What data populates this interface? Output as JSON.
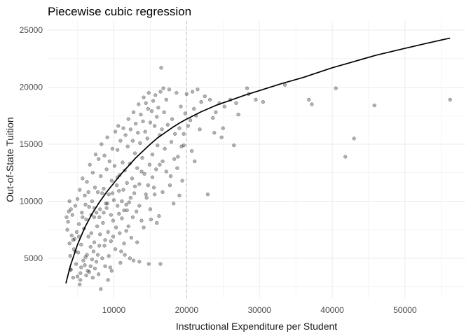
{
  "chart_data": {
    "type": "scatter",
    "title": "Piecewise cubic regression",
    "xlabel": "Instructional Expenditure per Student",
    "ylabel": "Out-of-State Tuition",
    "xlim": [
      900,
      58300
    ],
    "ylim": [
      1500,
      25800
    ],
    "x_ticks": [
      10000,
      20000,
      30000,
      40000,
      50000
    ],
    "x_tick_labels": [
      "10000",
      "20000",
      "30000",
      "40000",
      "50000"
    ],
    "y_ticks": [
      5000,
      10000,
      15000,
      20000,
      25000
    ],
    "y_tick_labels": [
      "5000",
      "10000",
      "15000",
      "20000",
      "25000"
    ],
    "grid": true,
    "knot_line": {
      "x": 20000,
      "style": "dashed"
    },
    "colors": {
      "points": "#000000",
      "points_alpha": 0.3,
      "fit_line": "#000000",
      "grid": "#ebebeb",
      "knot": "#bebebe"
    },
    "fit_curve": {
      "name": "",
      "x": [
        3400,
        4000,
        5000,
        6000,
        7000,
        8000,
        9000,
        10000,
        11000,
        12000,
        13000,
        14000,
        15000,
        16000,
        17000,
        18000,
        19000,
        20000,
        22000,
        24000,
        26000,
        28000,
        30000,
        33000,
        36000,
        40000,
        43000,
        46000,
        50000,
        53000,
        56200
      ],
      "y": [
        2800,
        4300,
        6200,
        7700,
        8900,
        9900,
        10800,
        11600,
        12400,
        13100,
        13800,
        14400,
        15000,
        15550,
        16000,
        16450,
        16850,
        17200,
        17850,
        18400,
        18850,
        19300,
        19700,
        20300,
        20850,
        21700,
        22250,
        22800,
        23400,
        23850,
        24300
      ]
    },
    "points": [
      [
        3600,
        7500
      ],
      [
        3700,
        8200
      ],
      [
        3800,
        9100
      ],
      [
        3900,
        6300
      ],
      [
        4000,
        5200
      ],
      [
        4100,
        4000
      ],
      [
        4200,
        7000
      ],
      [
        4300,
        8800
      ],
      [
        4400,
        3300
      ],
      [
        4500,
        5800
      ],
      [
        4600,
        6700
      ],
      [
        4700,
        9600
      ],
      [
        4800,
        4500
      ],
      [
        4900,
        7300
      ],
      [
        5000,
        10200
      ],
      [
        5100,
        5500
      ],
      [
        5200,
        8000
      ],
      [
        5300,
        11000
      ],
      [
        5400,
        3700
      ],
      [
        5500,
        6200
      ],
      [
        5600,
        9000
      ],
      [
        5700,
        12000
      ],
      [
        5800,
        4800
      ],
      [
        5900,
        7600
      ],
      [
        6000,
        10500
      ],
      [
        6100,
        5100
      ],
      [
        6200,
        8400
      ],
      [
        6300,
        11700
      ],
      [
        6400,
        3900
      ],
      [
        6500,
        6900
      ],
      [
        6600,
        9500
      ],
      [
        6700,
        13200
      ],
      [
        6800,
        4300
      ],
      [
        6900,
        7200
      ],
      [
        7000,
        10000
      ],
      [
        7100,
        12500
      ],
      [
        7200,
        5600
      ],
      [
        7300,
        8600
      ],
      [
        7400,
        11200
      ],
      [
        7500,
        14100
      ],
      [
        7600,
        4700
      ],
      [
        7700,
        7800
      ],
      [
        7800,
        10800
      ],
      [
        7900,
        13700
      ],
      [
        8000,
        6100
      ],
      [
        8100,
        9300
      ],
      [
        8200,
        12200
      ],
      [
        8300,
        15000
      ],
      [
        8400,
        5000
      ],
      [
        8500,
        8100
      ],
      [
        8600,
        11100
      ],
      [
        8700,
        14000
      ],
      [
        8800,
        6600
      ],
      [
        8900,
        9800
      ],
      [
        9000,
        12800
      ],
      [
        9100,
        15600
      ],
      [
        9200,
        7300
      ],
      [
        9300,
        10600
      ],
      [
        9400,
        13500
      ],
      [
        9500,
        4200
      ],
      [
        9600,
        8800
      ],
      [
        9700,
        11800
      ],
      [
        9800,
        14600
      ],
      [
        9900,
        6900
      ],
      [
        10000,
        10100
      ],
      [
        10100,
        13100
      ],
      [
        10200,
        16100
      ],
      [
        10300,
        7700
      ],
      [
        10400,
        11400
      ],
      [
        10500,
        14500
      ],
      [
        10600,
        16600
      ],
      [
        10700,
        8900
      ],
      [
        10800,
        12300
      ],
      [
        10900,
        15300
      ],
      [
        11000,
        5600
      ],
      [
        11100,
        10000
      ],
      [
        11200,
        13400
      ],
      [
        11300,
        16400
      ],
      [
        11400,
        9200
      ],
      [
        11500,
        12700
      ],
      [
        11600,
        15800
      ],
      [
        11700,
        7400
      ],
      [
        11800,
        11600
      ],
      [
        11900,
        14800
      ],
      [
        12000,
        17200
      ],
      [
        12100,
        9900
      ],
      [
        12200,
        13300
      ],
      [
        12300,
        16300
      ],
      [
        12400,
        6800
      ],
      [
        12500,
        12000
      ],
      [
        12600,
        15300
      ],
      [
        12700,
        17800
      ],
      [
        12800,
        10700
      ],
      [
        12900,
        14200
      ],
      [
        13000,
        16800
      ],
      [
        13100,
        9100
      ],
      [
        13200,
        12900
      ],
      [
        13300,
        16000
      ],
      [
        13400,
        18500
      ],
      [
        13500,
        11500
      ],
      [
        13600,
        15100
      ],
      [
        13700,
        17600
      ],
      [
        13800,
        8300
      ],
      [
        13900,
        13800
      ],
      [
        14000,
        17000
      ],
      [
        14100,
        19100
      ],
      [
        14200,
        12400
      ],
      [
        14300,
        16100
      ],
      [
        14400,
        18600
      ],
      [
        14500,
        10300
      ],
      [
        14600,
        15500
      ],
      [
        14700,
        18100
      ],
      [
        14800,
        19500
      ],
      [
        14900,
        13200
      ],
      [
        15000,
        16900
      ],
      [
        15100,
        8400
      ],
      [
        15200,
        17900
      ],
      [
        15300,
        14100
      ],
      [
        15400,
        18800
      ],
      [
        15500,
        11200
      ],
      [
        15600,
        16600
      ],
      [
        15700,
        19300
      ],
      [
        15800,
        12800
      ],
      [
        15900,
        17400
      ],
      [
        16000,
        14900
      ],
      [
        16100,
        18200
      ],
      [
        16200,
        8700
      ],
      [
        16300,
        15800
      ],
      [
        16400,
        19600
      ],
      [
        16500,
        21700
      ],
      [
        16600,
        16300
      ],
      [
        16700,
        13500
      ],
      [
        16800,
        19900
      ],
      [
        16900,
        17800
      ],
      [
        17000,
        14600
      ],
      [
        17200,
        18900
      ],
      [
        17400,
        16700
      ],
      [
        17600,
        19800
      ],
      [
        17800,
        12200
      ],
      [
        18000,
        17200
      ],
      [
        18200,
        9800
      ],
      [
        18400,
        15900
      ],
      [
        18600,
        19500
      ],
      [
        18800,
        13900
      ],
      [
        19000,
        16400
      ],
      [
        19200,
        18300
      ],
      [
        19400,
        11800
      ],
      [
        19600,
        14900
      ],
      [
        19800,
        17700
      ],
      [
        20000,
        19400
      ],
      [
        3500,
        8600
      ],
      [
        3900,
        10000
      ],
      [
        4100,
        9300
      ],
      [
        4400,
        6600
      ],
      [
        4700,
        5600
      ],
      [
        5000,
        3400
      ],
      [
        5200,
        6900
      ],
      [
        5500,
        4200
      ],
      [
        5700,
        8600
      ],
      [
        6000,
        4400
      ],
      [
        6300,
        5300
      ],
      [
        6500,
        10800
      ],
      [
        6800,
        6000
      ],
      [
        7000,
        4900
      ],
      [
        7300,
        6400
      ],
      [
        7600,
        9000
      ],
      [
        7800,
        5300
      ],
      [
        8100,
        7100
      ],
      [
        8400,
        10700
      ],
      [
        8700,
        6100
      ],
      [
        9000,
        9400
      ],
      [
        9300,
        5200
      ],
      [
        9600,
        6500
      ],
      [
        9900,
        8300
      ],
      [
        10200,
        5800
      ],
      [
        10500,
        9600
      ],
      [
        10800,
        7200
      ],
      [
        11100,
        8500
      ],
      [
        11400,
        6300
      ],
      [
        11700,
        9700
      ],
      [
        12000,
        7800
      ],
      [
        12300,
        10300
      ],
      [
        12600,
        8600
      ],
      [
        12900,
        11300
      ],
      [
        13200,
        6400
      ],
      [
        13500,
        9600
      ],
      [
        13800,
        12600
      ],
      [
        14100,
        7700
      ],
      [
        14400,
        10600
      ],
      [
        14700,
        11400
      ],
      [
        15000,
        9300
      ],
      [
        15300,
        12100
      ],
      [
        15600,
        10600
      ],
      [
        15900,
        8100
      ],
      [
        16300,
        13200
      ],
      [
        16700,
        10800
      ],
      [
        17200,
        12600
      ],
      [
        17700,
        11400
      ],
      [
        18300,
        13700
      ],
      [
        19000,
        10500
      ],
      [
        5300,
        2700
      ],
      [
        8200,
        2300
      ],
      [
        9200,
        3100
      ],
      [
        10900,
        4600
      ],
      [
        12700,
        4800
      ],
      [
        13500,
        4700
      ],
      [
        16400,
        4500
      ],
      [
        4000,
        4000
      ],
      [
        5400,
        3100
      ],
      [
        6200,
        3500
      ],
      [
        6600,
        3800
      ],
      [
        7100,
        3300
      ],
      [
        7400,
        4100
      ],
      [
        7900,
        3600
      ],
      [
        8800,
        4300
      ],
      [
        9700,
        3900
      ],
      [
        11500,
        5300
      ],
      [
        12200,
        5000
      ],
      [
        14800,
        4500
      ],
      [
        11800,
        9200
      ],
      [
        8000,
        8600
      ],
      [
        8600,
        9000
      ],
      [
        9100,
        9800
      ],
      [
        7300,
        9400
      ],
      [
        6900,
        8800
      ],
      [
        6100,
        9700
      ],
      [
        10700,
        10900
      ],
      [
        11300,
        11000
      ],
      [
        10500,
        12100
      ],
      [
        9800,
        10700
      ],
      [
        20500,
        17100
      ],
      [
        20800,
        19600
      ],
      [
        21000,
        18100
      ],
      [
        21500,
        19800
      ],
      [
        22000,
        18700
      ],
      [
        22500,
        19200
      ],
      [
        22900,
        10600
      ],
      [
        23200,
        18900
      ],
      [
        24000,
        17800
      ],
      [
        24500,
        18600
      ],
      [
        25200,
        18300
      ],
      [
        26000,
        18900
      ],
      [
        26800,
        18600
      ],
      [
        28300,
        19900
      ],
      [
        28500,
        19400
      ],
      [
        29500,
        18900
      ],
      [
        30500,
        18700
      ],
      [
        33500,
        20200
      ],
      [
        36800,
        18900
      ],
      [
        37200,
        18500
      ],
      [
        40500,
        19900
      ],
      [
        41800,
        13900
      ],
      [
        43000,
        15500
      ],
      [
        45800,
        18400
      ],
      [
        56200,
        18900
      ],
      [
        19600,
        15900
      ],
      [
        20200,
        16600
      ],
      [
        20700,
        14400
      ],
      [
        21300,
        17500
      ],
      [
        21800,
        16300
      ],
      [
        23600,
        17300
      ],
      [
        25000,
        16400
      ],
      [
        27100,
        17600
      ],
      [
        19300,
        14800
      ],
      [
        18700,
        12900
      ],
      [
        17900,
        15200
      ],
      [
        21100,
        13500
      ],
      [
        23800,
        16000
      ],
      [
        24800,
        15600
      ],
      [
        26500,
        14900
      ]
    ]
  }
}
